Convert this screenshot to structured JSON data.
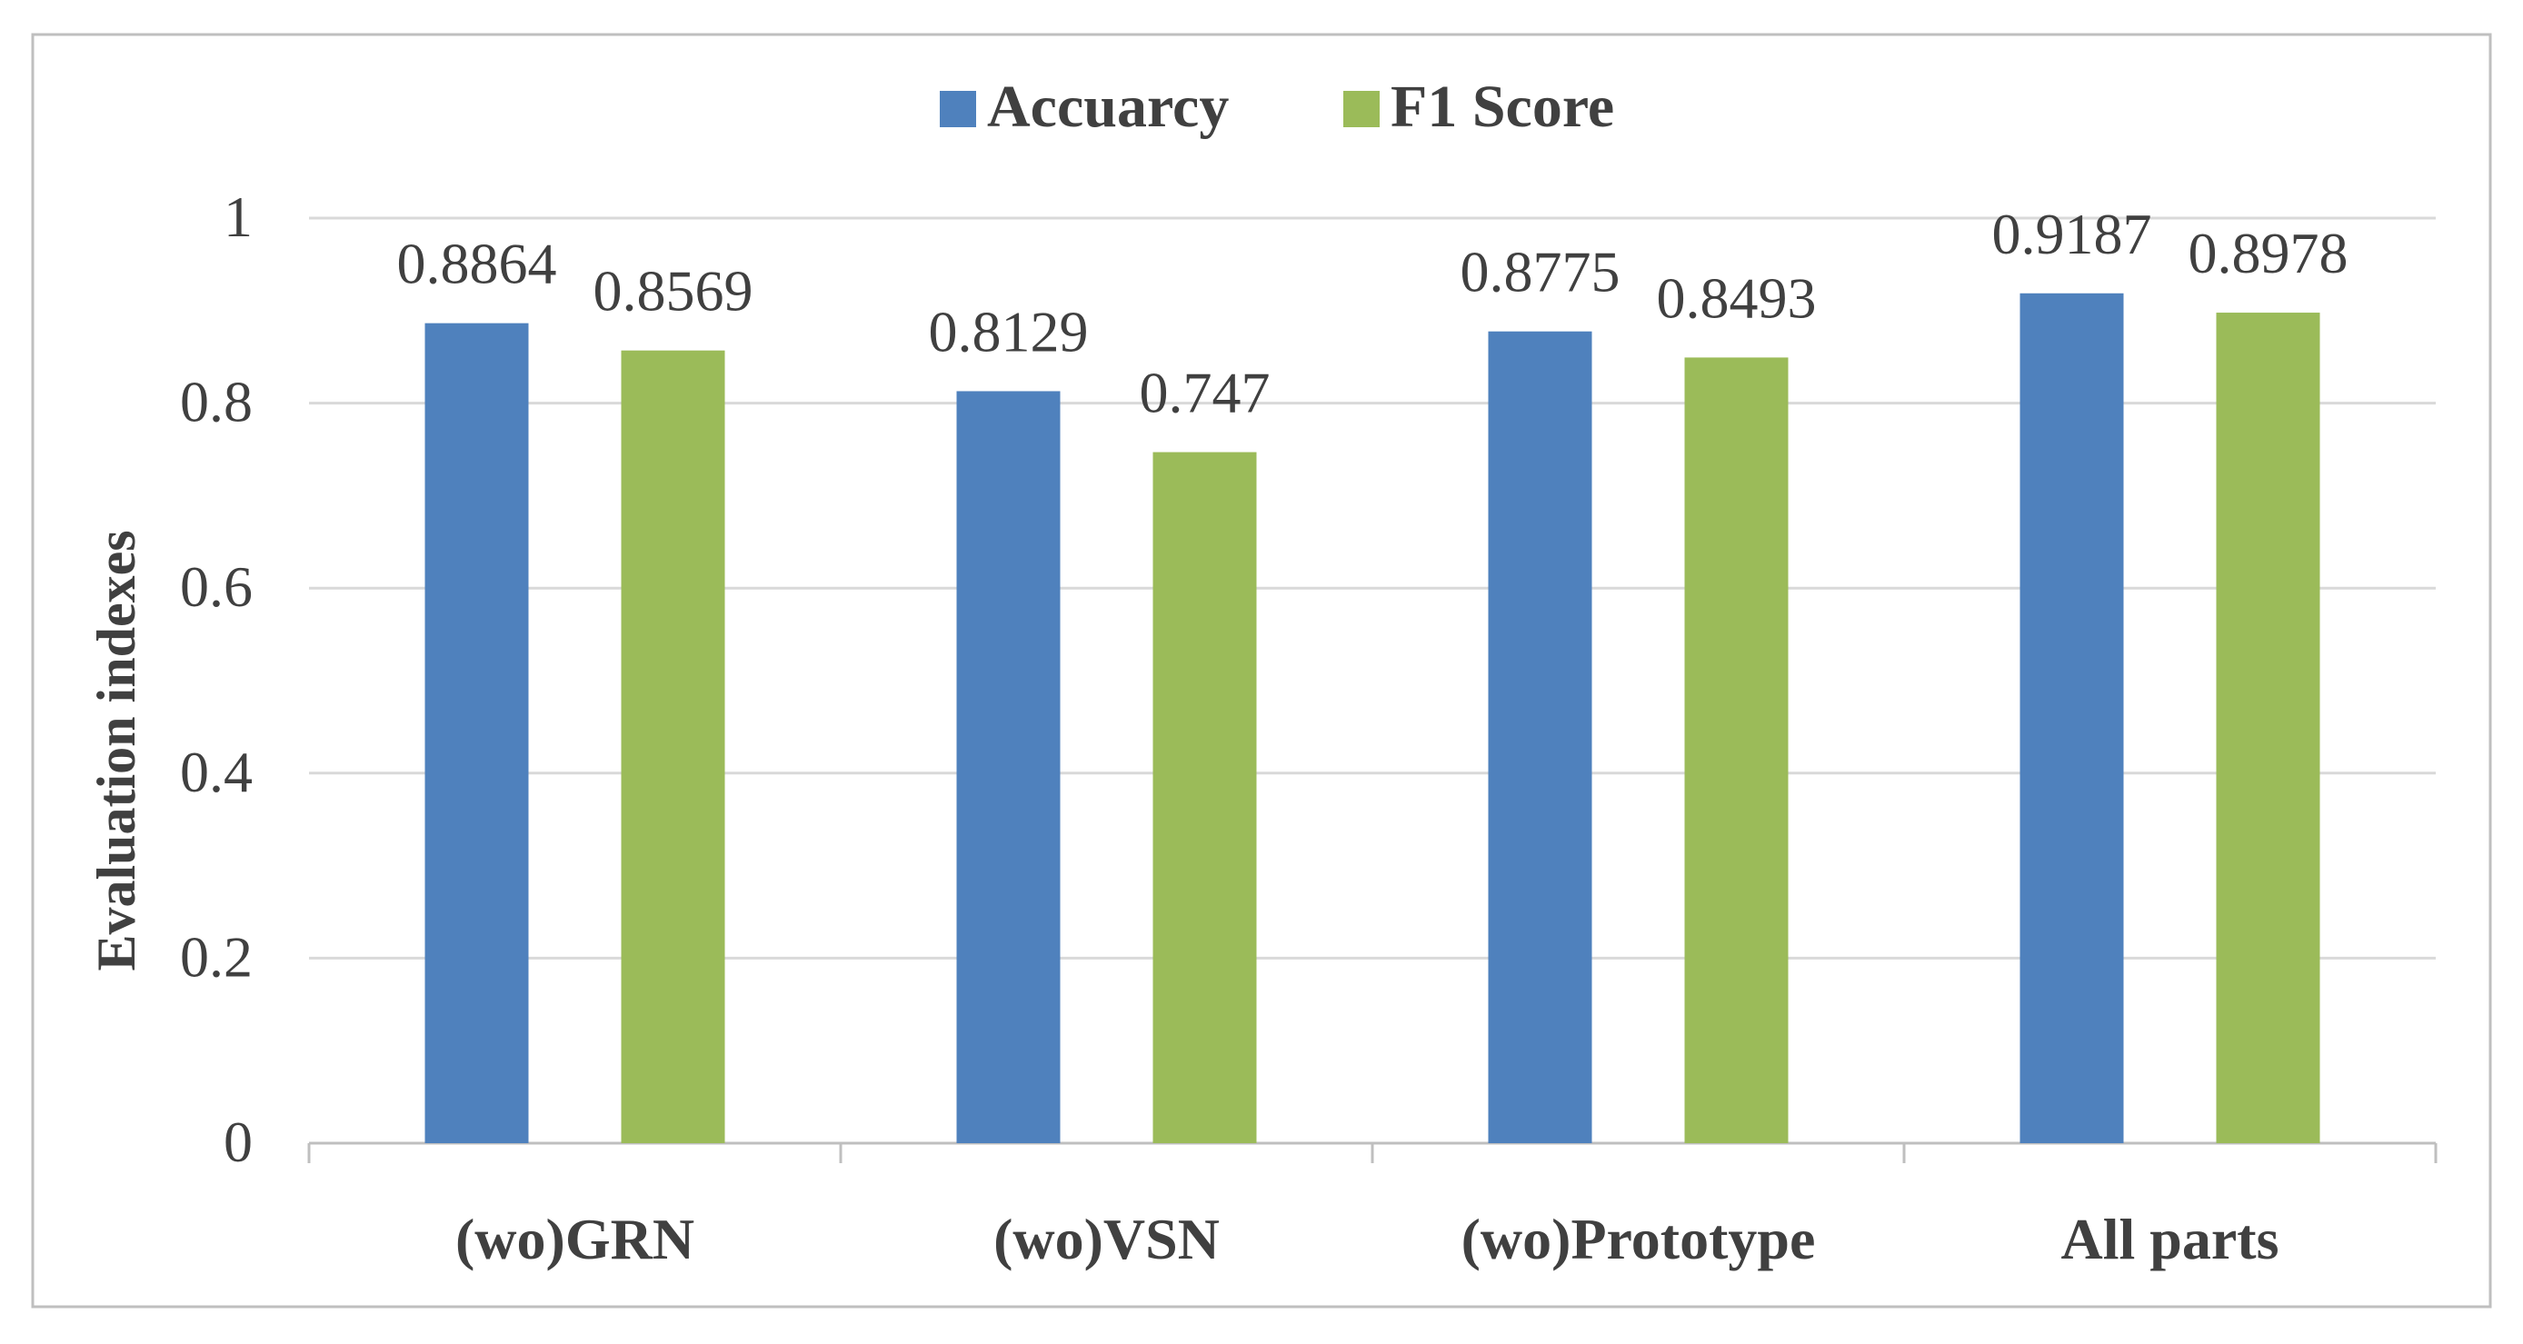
{
  "chart_data": {
    "type": "bar",
    "categories": [
      "(wo)GRN",
      "(wo)VSN",
      "(wo)Prototype",
      "All parts"
    ],
    "series": [
      {
        "name": "Accuarcy",
        "values": [
          0.8864,
          0.8129,
          0.8775,
          0.9187
        ],
        "labels": [
          "0.8864",
          "0.8129",
          "0.8775",
          "0.9187"
        ]
      },
      {
        "name": "F1 Score",
        "values": [
          0.8569,
          0.747,
          0.8493,
          0.8978
        ],
        "labels": [
          "0.8569",
          "0.747",
          "0.8493",
          "0.8978"
        ]
      }
    ],
    "xlabel": "",
    "ylabel": "Evaluation indexes",
    "ylim": [
      0,
      1
    ],
    "yticks": [
      "0",
      "0.2",
      "0.4",
      "0.6",
      "0.8",
      "1"
    ],
    "grid": true,
    "legend": "top-center",
    "colors": {
      "Accuarcy": "#4f81bd",
      "F1 Score": "#9bbb59",
      "gridline": "#d9d9d9",
      "axis": "#bfbfbf",
      "text": "#404040",
      "frame": "#bfbfbf"
    }
  }
}
